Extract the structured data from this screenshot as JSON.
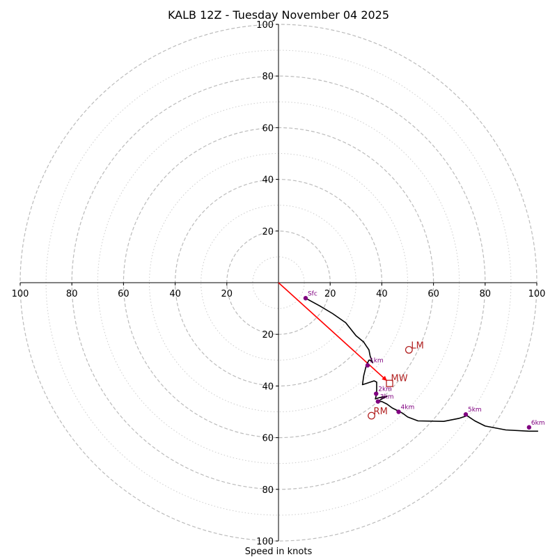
{
  "chart_data": {
    "type": "hodograph",
    "title": "KALB 12Z - Tuesday November 04 2025",
    "xlabel": "Speed in knots",
    "max_speed": 100,
    "ring_major": [
      20,
      40,
      60,
      80,
      100
    ],
    "ring_minor": [
      10,
      30,
      50,
      70,
      90
    ],
    "tick_labels": {
      "left": [
        "100",
        "80",
        "60",
        "40",
        "20"
      ],
      "right": [
        "20",
        "40",
        "60",
        "80",
        "100"
      ],
      "top": [
        "20",
        "40",
        "60",
        "80",
        "100"
      ],
      "bottom": [
        "20",
        "40",
        "60",
        "80",
        "100"
      ]
    },
    "tick_values": [
      20,
      40,
      60,
      80,
      100
    ],
    "trace": [
      [
        10.5,
        -6
      ],
      [
        16,
        -9
      ],
      [
        21,
        -12
      ],
      [
        26,
        -15.5
      ],
      [
        30,
        -20.5
      ],
      [
        33,
        -23
      ],
      [
        34,
        -24.5
      ],
      [
        35,
        -26
      ],
      [
        35.5,
        -28.5
      ],
      [
        36.5,
        -31
      ],
      [
        35.5,
        -30
      ],
      [
        35,
        -30
      ],
      [
        34,
        -32
      ],
      [
        33,
        -36
      ],
      [
        32.5,
        -39.5
      ],
      [
        34,
        -39
      ],
      [
        37,
        -38
      ],
      [
        38,
        -38.5
      ],
      [
        38,
        -43
      ],
      [
        37.5,
        -45
      ],
      [
        39,
        -44.5
      ],
      [
        42,
        -44
      ],
      [
        40,
        -45
      ],
      [
        38.5,
        -46
      ],
      [
        40,
        -46
      ],
      [
        42,
        -47
      ],
      [
        44,
        -48.5
      ],
      [
        46,
        -49.5
      ],
      [
        48,
        -50.5
      ],
      [
        50,
        -52
      ],
      [
        54,
        -53.5
      ],
      [
        64,
        -53.7
      ],
      [
        70,
        -52.5
      ],
      [
        73,
        -51.5
      ],
      [
        76,
        -53.5
      ],
      [
        80,
        -55.5
      ],
      [
        88,
        -57
      ],
      [
        97,
        -57.5
      ],
      [
        100.5,
        -57.5
      ]
    ],
    "height_markers": [
      {
        "label": "Sfc",
        "u": 10.5,
        "v": -6
      },
      {
        "label": "1km",
        "u": 34.5,
        "v": -32
      },
      {
        "label": "2km",
        "u": 37.8,
        "v": -43
      },
      {
        "label": "3km",
        "u": 38.5,
        "v": -46
      },
      {
        "label": "4km",
        "u": 46.5,
        "v": -50
      },
      {
        "label": "5km",
        "u": 72.5,
        "v": -51
      },
      {
        "label": "6km",
        "u": 97,
        "v": -56
      }
    ],
    "storm_motion": {
      "mean_wind": {
        "label": "MW",
        "u": 43,
        "v": -39
      },
      "left_mover": {
        "label": "LM",
        "u": 50.5,
        "v": -26
      },
      "right_mover": {
        "label": "RM",
        "u": 36,
        "v": -51.5
      }
    },
    "shear_vector": {
      "u0": 0,
      "v0": 0,
      "u1": 42,
      "v1": -38
    },
    "colors": {
      "trace": "#000000",
      "marker": "#800080",
      "marker_label": "#800080",
      "storm_motion": "#b22222",
      "shear_vector": "#ff0000",
      "ring_major": "#bbbbbb",
      "ring_minor": "#cccccc",
      "axis": "#000000"
    }
  }
}
